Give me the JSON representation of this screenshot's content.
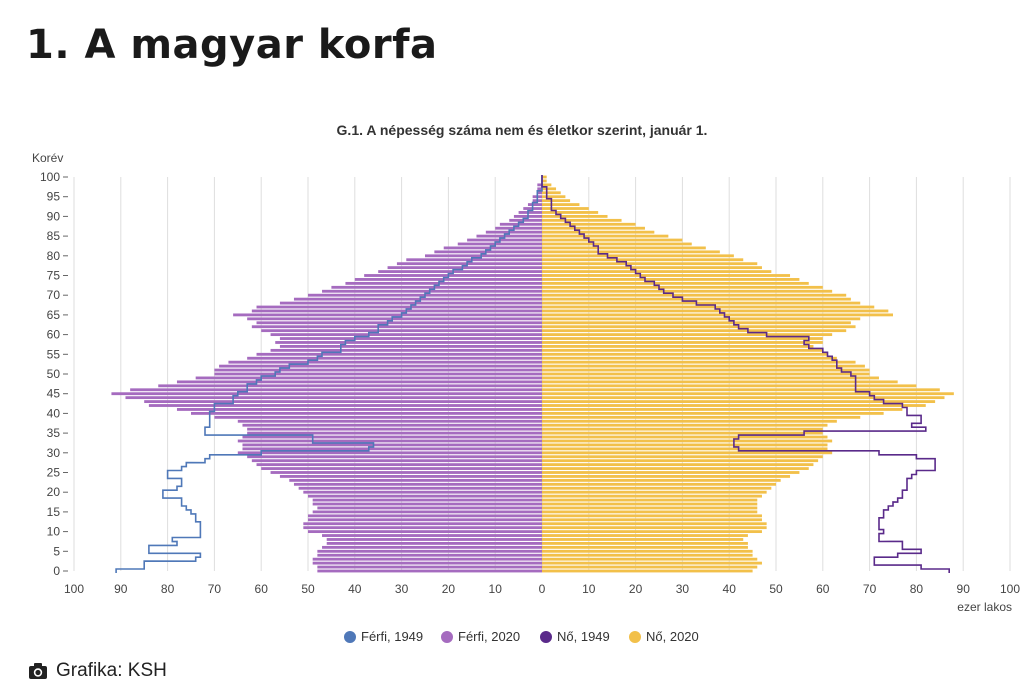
{
  "page": {
    "title": "1. A magyar korfa",
    "credit": "Grafika: KSH",
    "credit_icon": "camera-icon"
  },
  "chart_data": {
    "type": "population-pyramid",
    "title": "G.1. A népesség száma nem és életkor szerint, január 1.",
    "ylabel": "Korév",
    "xlabel": "ezer lakos",
    "xlim": [
      -100,
      100
    ],
    "ylim": [
      0,
      100
    ],
    "x_ticks": [
      100,
      90,
      80,
      70,
      60,
      50,
      40,
      30,
      20,
      10,
      0,
      10,
      20,
      30,
      40,
      50,
      60,
      70,
      80,
      90,
      100
    ],
    "y_ticks": [
      0,
      5,
      10,
      15,
      20,
      25,
      30,
      35,
      40,
      45,
      50,
      55,
      60,
      65,
      70,
      75,
      80,
      85,
      90,
      95,
      100
    ],
    "grid": true,
    "legend_position": "bottom",
    "legend": [
      "Férfi, 1949",
      "Férfi, 2020",
      "Nő, 1949",
      "Nő, 2020"
    ],
    "colors": {
      "male_1949": "#4f78b8",
      "male_2020": "#a56bbf",
      "female_1949": "#5a2a8a",
      "female_2020": "#f2c04a"
    },
    "ages_note": "values indexed by age 0..100, thousand persons",
    "series": [
      {
        "name": "Férfi, 1949",
        "side": "left",
        "style": "step-line",
        "values": [
          91,
          85,
          85,
          74,
          73,
          84,
          84,
          78,
          79,
          73,
          73,
          73,
          73,
          74,
          74,
          75,
          76,
          77,
          77,
          81,
          81,
          78,
          77,
          77,
          80,
          80,
          77,
          76,
          72,
          71,
          60,
          37,
          36,
          49,
          49,
          72,
          72,
          71,
          71,
          71,
          71,
          70,
          70,
          66,
          66,
          65,
          63,
          63,
          61,
          60,
          57,
          56,
          54,
          50,
          48,
          47,
          43,
          43,
          42,
          40,
          37,
          35,
          35,
          33,
          32,
          30,
          29,
          28,
          27,
          26,
          25,
          24,
          23,
          22,
          21,
          20,
          19,
          17,
          16,
          15,
          13,
          12,
          11,
          10,
          9,
          8,
          7,
          6,
          5,
          4,
          3,
          3,
          2,
          2,
          1,
          1,
          1,
          0,
          0,
          0,
          0
        ]
      },
      {
        "name": "Férfi, 2020",
        "side": "left",
        "style": "bars",
        "values": [
          48,
          48,
          49,
          49,
          48,
          48,
          47,
          46,
          46,
          47,
          50,
          51,
          51,
          50,
          50,
          49,
          48,
          49,
          49,
          50,
          51,
          52,
          53,
          54,
          56,
          58,
          60,
          61,
          62,
          63,
          65,
          64,
          64,
          65,
          64,
          63,
          63,
          64,
          65,
          70,
          75,
          78,
          84,
          85,
          89,
          92,
          88,
          82,
          78,
          74,
          70,
          70,
          69,
          67,
          63,
          61,
          58,
          56,
          57,
          56,
          58,
          60,
          62,
          61,
          63,
          66,
          62,
          61,
          56,
          53,
          50,
          47,
          45,
          42,
          40,
          38,
          35,
          33,
          31,
          29,
          25,
          23,
          21,
          18,
          16,
          14,
          12,
          10,
          9,
          7,
          6,
          5,
          4,
          3,
          2,
          2,
          1,
          1,
          1,
          0,
          0
        ]
      },
      {
        "name": "Nő, 1949",
        "side": "right",
        "style": "step-line",
        "values": [
          87,
          81,
          71,
          71,
          76,
          81,
          77,
          77,
          72,
          72,
          73,
          72,
          72,
          72,
          73,
          73,
          74,
          75,
          76,
          77,
          77,
          78,
          78,
          78,
          79,
          80,
          84,
          84,
          84,
          80,
          72,
          42,
          41,
          41,
          42,
          56,
          82,
          79,
          81,
          81,
          78,
          78,
          77,
          73,
          71,
          70,
          67,
          67,
          67,
          67,
          66,
          64,
          63,
          63,
          62,
          61,
          60,
          57,
          56,
          57,
          48,
          44,
          42,
          41,
          40,
          39,
          38,
          37,
          33,
          30,
          28,
          26,
          25,
          24,
          22,
          21,
          20,
          19,
          18,
          16,
          14,
          12,
          12,
          11,
          10,
          9,
          8,
          7,
          6,
          5,
          4,
          3,
          2,
          2,
          2,
          1,
          1,
          1,
          0,
          0,
          0
        ]
      },
      {
        "name": "Nő, 2020",
        "side": "right",
        "style": "bars",
        "values": [
          45,
          46,
          47,
          46,
          45,
          45,
          44,
          44,
          43,
          44,
          47,
          48,
          48,
          47,
          47,
          46,
          46,
          46,
          46,
          47,
          48,
          49,
          50,
          51,
          53,
          55,
          57,
          58,
          59,
          60,
          62,
          61,
          61,
          62,
          61,
          60,
          60,
          61,
          63,
          68,
          73,
          77,
          82,
          84,
          86,
          88,
          85,
          80,
          76,
          72,
          70,
          70,
          69,
          67,
          63,
          61,
          60,
          58,
          60,
          60,
          62,
          65,
          67,
          66,
          68,
          75,
          74,
          71,
          68,
          66,
          65,
          62,
          60,
          57,
          55,
          53,
          49,
          47,
          46,
          43,
          41,
          38,
          35,
          32,
          30,
          27,
          24,
          22,
          20,
          17,
          14,
          12,
          10,
          8,
          6,
          5,
          4,
          3,
          2,
          1,
          1
        ]
      }
    ]
  }
}
